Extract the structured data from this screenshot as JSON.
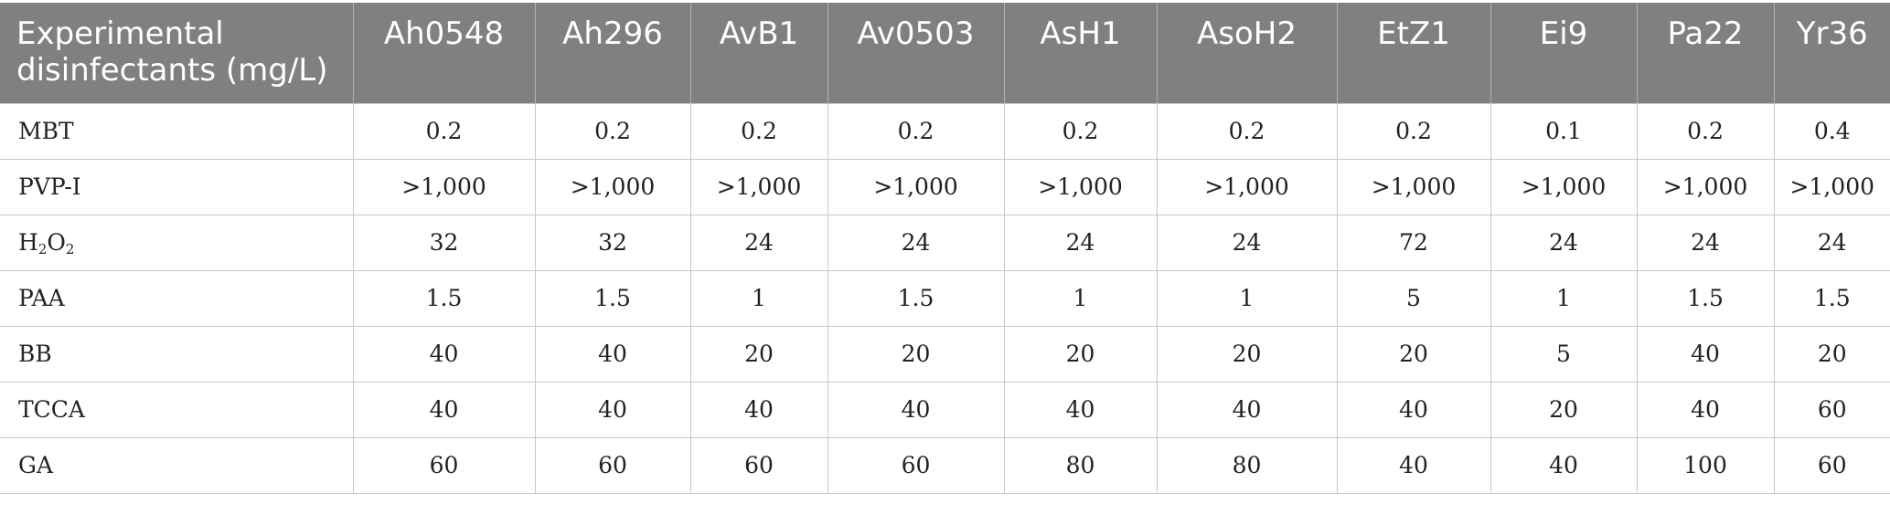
{
  "table": {
    "header_label": "Experimental disinfectants (mg/L)",
    "columns": [
      "Ah0548",
      "Ah296",
      "AvB1",
      "Av0503",
      "AsH1",
      "AsoH2",
      "EtZ1",
      "Ei9",
      "Pa22",
      "Yr36"
    ],
    "rows": [
      {
        "label": "MBT",
        "values": [
          "0.2",
          "0.2",
          "0.2",
          "0.2",
          "0.2",
          "0.2",
          "0.2",
          "0.1",
          "0.2",
          "0.4"
        ]
      },
      {
        "label": "PVP-I",
        "values": [
          ">1,000",
          ">1,000",
          ">1,000",
          ">1,000",
          ">1,000",
          ">1,000",
          ">1,000",
          ">1,000",
          ">1,000",
          ">1,000"
        ]
      },
      {
        "label_main": "H",
        "label_sub1": "2",
        "label_mid": "O",
        "label_sub2": "2",
        "values": [
          "32",
          "32",
          "24",
          "24",
          "24",
          "24",
          "72",
          "24",
          "24",
          "24"
        ]
      },
      {
        "label": "PAA",
        "values": [
          "1.5",
          "1.5",
          "1",
          "1.5",
          "1",
          "1",
          "5",
          "1",
          "1.5",
          "1.5"
        ]
      },
      {
        "label": "BB",
        "values": [
          "40",
          "40",
          "20",
          "20",
          "20",
          "20",
          "20",
          "5",
          "40",
          "20"
        ]
      },
      {
        "label": "TCCA",
        "values": [
          "40",
          "40",
          "40",
          "40",
          "40",
          "40",
          "40",
          "20",
          "40",
          "60"
        ]
      },
      {
        "label": "GA",
        "values": [
          "60",
          "60",
          "60",
          "60",
          "80",
          "80",
          "40",
          "40",
          "100",
          "60"
        ]
      }
    ]
  }
}
